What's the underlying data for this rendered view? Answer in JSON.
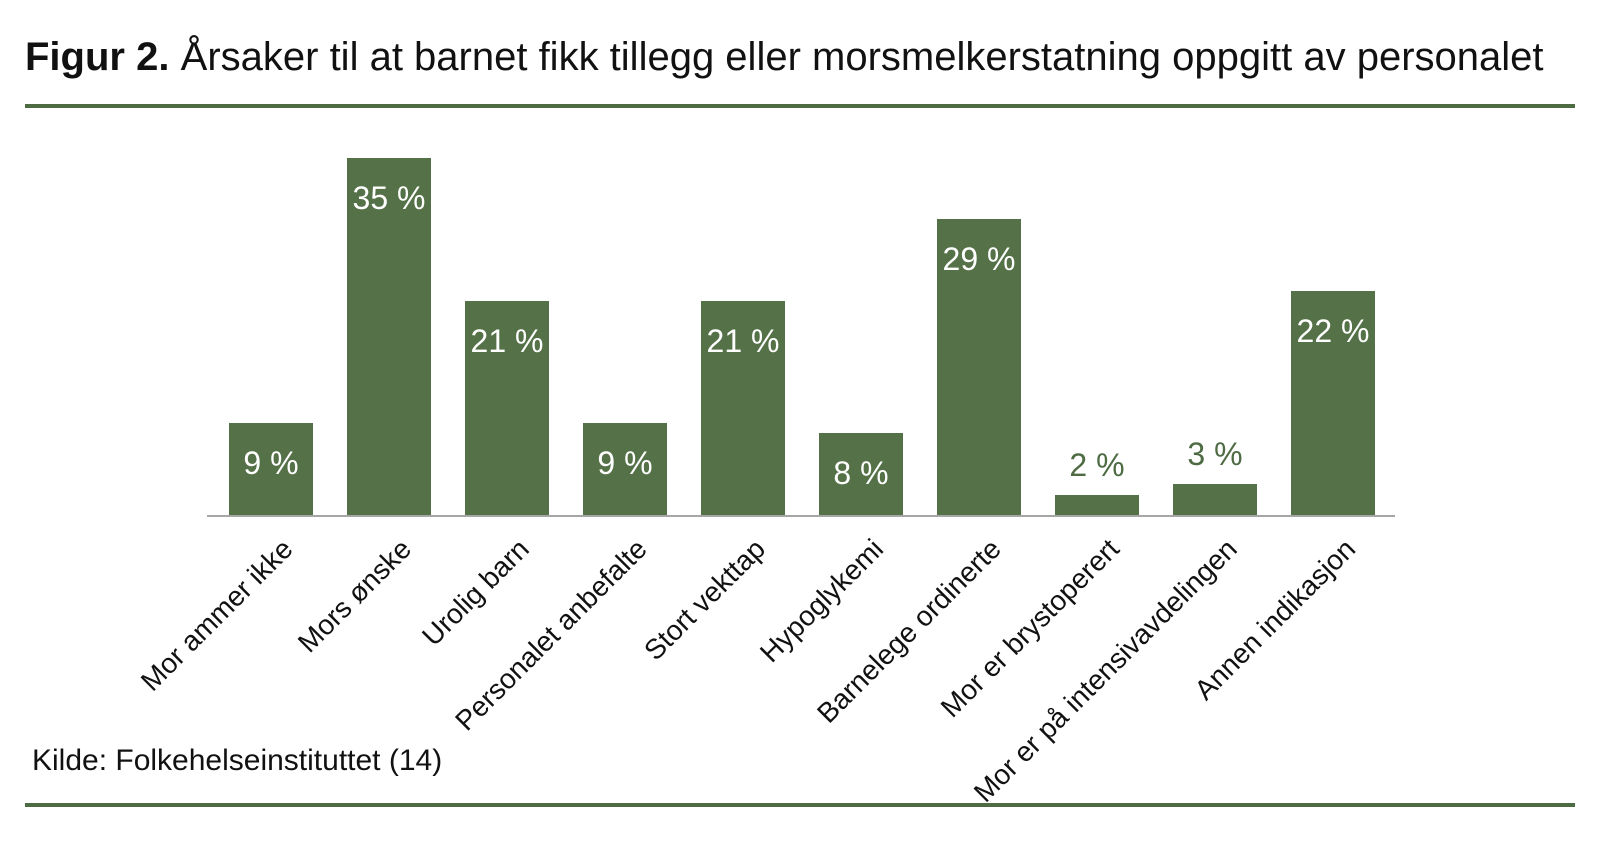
{
  "figure": {
    "title_prefix": "Figur 2.",
    "title_rest": "Årsaker til at barnet fikk tillegg eller morsmelkerstatning oppgitt av personalet",
    "source": "Kilde: Folkehelseinstituttet (14)"
  },
  "colors": {
    "bar": "#547147",
    "accent_rule": "#4e6b44",
    "axis_line": "#a6a6a6",
    "value_label_inside": "#ffffff",
    "value_label_outside": "#4e6b44",
    "text": "#111111"
  },
  "chart_data": {
    "type": "bar",
    "title": "Figur 2. Årsaker til at barnet fikk tillegg eller morsmelkerstatning oppgitt av personalet",
    "xlabel": "",
    "ylabel": "",
    "ylim": [
      0,
      38
    ],
    "grid": false,
    "legend": "none",
    "bar_color": "#547147",
    "categories": [
      "Mor ammer ikke",
      "Mors ønske",
      "Urolig barn",
      "Personalet anbefalte",
      "Stort vekttap",
      "Hypoglykemi",
      "Barnelege ordinerte",
      "Mor er brystoperert",
      "Mor er på intensivavdelingen",
      "Annen indikasjon"
    ],
    "values": [
      9,
      35,
      21,
      9,
      21,
      8,
      29,
      2,
      3,
      22
    ],
    "value_labels": [
      "9 %",
      "35 %",
      "21 %",
      "9 %",
      "21 %",
      "8 %",
      "29 %",
      "2 %",
      "3 %",
      "22 %"
    ],
    "source": "Kilde: Folkehelseinstituttet (14)"
  }
}
